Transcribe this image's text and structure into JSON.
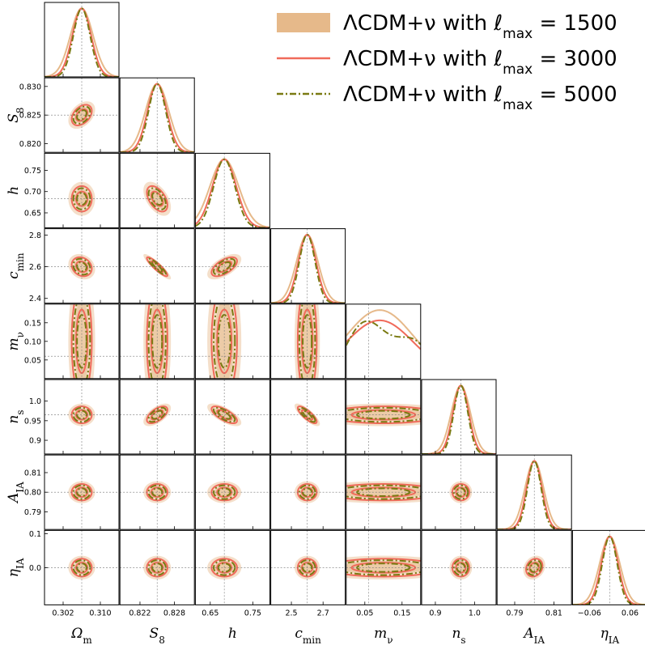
{
  "chart_data": {
    "type": "corner",
    "parameters": [
      {
        "name": "Omega_m",
        "label": "Ω",
        "sub": "m",
        "fiducial": 0.306,
        "range": [
          0.298,
          0.314
        ],
        "ticks": [
          0.302,
          0.31
        ],
        "tick_labels": [
          "0.302",
          "0.310"
        ]
      },
      {
        "name": "S_8",
        "label": "S",
        "sub": "8",
        "fiducial": 0.825,
        "range": [
          0.8185,
          0.8315
        ],
        "ticks": [
          0.82,
          0.825,
          0.83
        ],
        "tick_labels": [
          "0.820",
          "0.825",
          "0.830"
        ],
        "x_tick_labels": [
          "0.822",
          "0.828"
        ],
        "x_ticks": [
          0.822,
          0.828
        ]
      },
      {
        "name": "h",
        "label": "h",
        "sub": "",
        "fiducial": 0.683,
        "range": [
          0.615,
          0.79
        ],
        "ticks": [
          0.65,
          0.7,
          0.75
        ],
        "tick_labels": [
          "0.65",
          "0.70",
          "0.75"
        ],
        "x_ticks": [
          0.65,
          0.75
        ],
        "x_tick_labels": [
          "0.65",
          "0.75"
        ]
      },
      {
        "name": "c_min",
        "label": "c",
        "sub": "min",
        "fiducial": 2.6,
        "range": [
          2.37,
          2.84
        ],
        "ticks": [
          2.4,
          2.6,
          2.8
        ],
        "tick_labels": [
          "2.4",
          "2.6",
          "2.8"
        ],
        "x_ticks": [
          2.5,
          2.7
        ],
        "x_tick_labels": [
          "2.5",
          "2.7"
        ]
      },
      {
        "name": "m_nu",
        "label": "m",
        "sub": "ν",
        "fiducial": 0.06,
        "range": [
          0.0,
          0.2
        ],
        "ticks": [
          0.05,
          0.1,
          0.15
        ],
        "tick_labels": [
          "0.05",
          "0.10",
          "0.15"
        ],
        "x_ticks": [
          0.05,
          0.15
        ],
        "x_tick_labels": [
          "0.05",
          "0.15"
        ]
      },
      {
        "name": "n_s",
        "label": "n",
        "sub": "s",
        "fiducial": 0.965,
        "range": [
          0.865,
          1.055
        ],
        "ticks": [
          0.9,
          1.0
        ],
        "tick_labels": [
          "0.9",
          "1.0"
        ],
        "y_ticks": [
          0.9,
          0.95,
          1.0
        ],
        "y_tick_labels": [
          "0.9",
          "0.95",
          "1.0"
        ]
      },
      {
        "name": "A_IA",
        "label": "A",
        "sub": "IA",
        "fiducial": 0.8,
        "range": [
          0.781,
          0.819
        ],
        "ticks": [
          0.79,
          0.81
        ],
        "tick_labels": [
          "0.79",
          "0.81"
        ],
        "y_ticks": [
          0.79,
          0.8,
          0.81
        ],
        "y_tick_labels": [
          "0.79",
          "0.80",
          "0.81"
        ]
      },
      {
        "name": "eta_IA",
        "label": "η",
        "sub": "IA",
        "fiducial": 0.0,
        "range": [
          -0.11,
          0.11
        ],
        "ticks": [
          -0.06,
          0.06
        ],
        "tick_labels": [
          "−0.06",
          "0.06"
        ],
        "y_ticks": [
          0.0,
          0.1
        ],
        "y_tick_labels": [
          "0.0",
          "0.1"
        ]
      }
    ],
    "series": [
      {
        "name": "ΛCDM+ν with ℓmax = 1500",
        "label_main": "ΛCDM+ν with ℓ",
        "label_sub": "max",
        "label_tail": " = 1500",
        "style": "filled",
        "color": "#e6b98a",
        "scale": 1.6
      },
      {
        "name": "ΛCDM+ν with ℓmax = 3000",
        "label_main": "ΛCDM+ν with ℓ",
        "label_sub": "max",
        "label_tail": " = 3000",
        "style": "solid",
        "color": "#f06a5a",
        "scale": 1.2
      },
      {
        "name": "ΛCDM+ν with ℓmax = 5000",
        "label_main": "ΛCDM+ν with ℓ",
        "label_sub": "max",
        "label_tail": " = 5000",
        "style": "dashdot",
        "color": "#7a7a12",
        "scale": 1.0
      }
    ],
    "sigma_1d": [
      0.0018,
      0.0015,
      0.025,
      0.05,
      0.06,
      0.018,
      0.0035,
      0.022
    ],
    "correlations": {
      "1-0": 0.4,
      "2-0": 0.0,
      "2-1": -0.5,
      "3-0": -0.2,
      "3-1": -0.9,
      "3-2": 0.6,
      "4-0": 0.0,
      "4-1": 0.0,
      "4-2": 0.0,
      "4-3": 0.0,
      "5-0": 0.0,
      "5-1": 0.6,
      "5-2": -0.7,
      "5-3": -0.8,
      "5-4": 0.0,
      "6-0": 0.0,
      "6-1": 0.0,
      "6-2": 0.0,
      "6-3": 0.0,
      "6-4": 0.0,
      "6-5": 0.0,
      "7-0": 0.0,
      "7-1": 0.0,
      "7-2": 0.0,
      "7-3": 0.0,
      "7-4": 0.0,
      "7-5": 0.0,
      "7-6": 0.2
    },
    "legend_position": "top-right",
    "grid": false
  }
}
